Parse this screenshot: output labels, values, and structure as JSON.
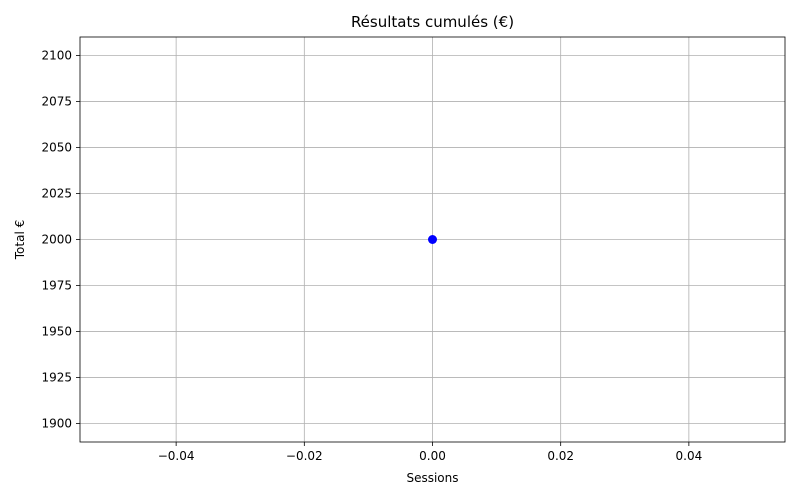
{
  "chart_data": {
    "type": "line",
    "title": "Résultats cumulés (€)",
    "xlabel": "Sessions",
    "ylabel": "Total €",
    "xlim": [
      -0.055,
      0.055
    ],
    "ylim": [
      1890,
      2110
    ],
    "xticks": [
      -0.04,
      -0.02,
      0.0,
      0.02,
      0.04
    ],
    "xtick_labels": [
      "−0.04",
      "−0.02",
      "0.00",
      "0.02",
      "0.04"
    ],
    "yticks": [
      1900,
      1925,
      1950,
      1975,
      2000,
      2025,
      2050,
      2075,
      2100
    ],
    "ytick_labels": [
      "1900",
      "1925",
      "1950",
      "1975",
      "2000",
      "2025",
      "2050",
      "2075",
      "2100"
    ],
    "grid": true,
    "series": [
      {
        "color": "#0000ff",
        "marker": "circle",
        "points": [
          {
            "x": 0,
            "y": 2000
          }
        ]
      }
    ]
  }
}
